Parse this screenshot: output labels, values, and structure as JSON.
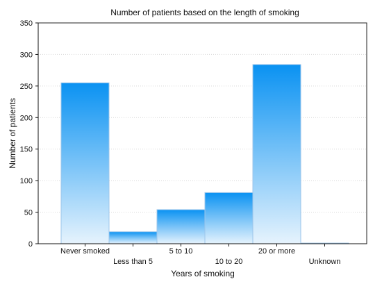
{
  "chart_data": {
    "type": "bar",
    "title": "Number of patients based on the length of smoking",
    "xlabel": "Years of smoking",
    "ylabel": "Number of patients",
    "categories": [
      "Never smoked",
      "Less than 5",
      "5 to 10",
      "10 to 20",
      "20 or more",
      "Unknown"
    ],
    "values": [
      255,
      19,
      54,
      81,
      284,
      1
    ],
    "ylim": [
      0,
      350
    ],
    "yticks": [
      "0",
      "50",
      "100",
      "150",
      "200",
      "250",
      "300",
      "350"
    ],
    "grid": true,
    "bar_gradient": {
      "top": "#0a92f2",
      "bottom": "#e6f3fd"
    }
  }
}
